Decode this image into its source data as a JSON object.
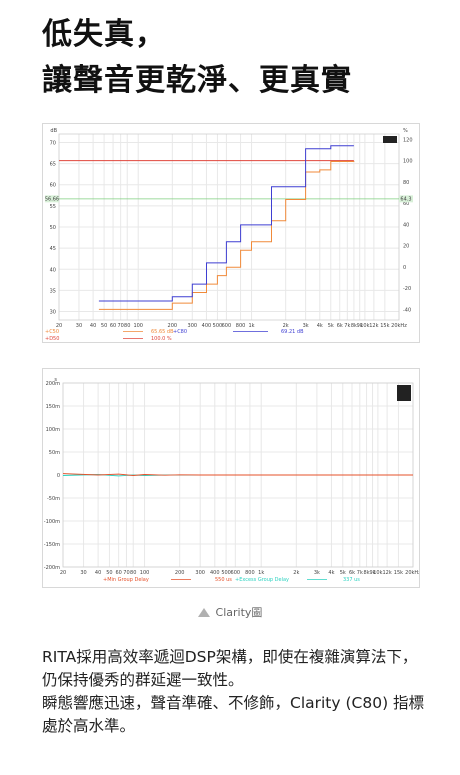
{
  "headline": {
    "line1": "低失真，",
    "line2": "讓聲音更乾淨、更真實"
  },
  "colors": {
    "blue": "#3f3fd2",
    "red": "#e5502a",
    "orange": "#f08a3a",
    "cyan": "#2bd2c0",
    "redline": "#e0463c"
  },
  "figure1": {
    "y_unit_left": "dB",
    "y_unit_right": "%",
    "y_ticks_left": [
      "70",
      "65",
      "60",
      "55",
      "50",
      "45",
      "40",
      "35",
      "30"
    ],
    "y_ticks_right": [
      "120",
      "100",
      "80",
      "60",
      "40",
      "20",
      "0",
      "-20",
      "-40"
    ],
    "x_ticks": [
      "20",
      "30",
      "40",
      "50",
      "60",
      "70",
      "80",
      "100",
      "200",
      "300",
      "400",
      "500",
      "600",
      "800",
      "1k",
      "2k",
      "3k",
      "4k",
      "5k",
      "6k",
      "7k",
      "8k",
      "9k",
      "10k",
      "12k",
      "15k",
      "20kHz"
    ],
    "cursor_left": "56.66",
    "cursor_right": "64.3",
    "legend": [
      {
        "label": "+C50",
        "value": "65.65 dB",
        "label2": "+C80",
        "value2": "69.21 dB"
      },
      {
        "label": "+D50",
        "value": "100.0 %"
      }
    ]
  },
  "figure2": {
    "y_unit": "s",
    "y_ticks": [
      "200m",
      "150m",
      "100m",
      "50m",
      "0",
      "-50m",
      "-100m",
      "-150m",
      "-200m"
    ],
    "x_ticks": [
      "20",
      "30",
      "40",
      "50",
      "60",
      "70",
      "80",
      "100",
      "200",
      "300",
      "400",
      "500",
      "600",
      "800",
      "1k",
      "2k",
      "3k",
      "4k",
      "5k",
      "6k",
      "7k",
      "8k",
      "9k",
      "10k",
      "12k",
      "15k",
      "20kHz"
    ],
    "legend": [
      {
        "label": "+Min Group Delay",
        "value": "550 us"
      },
      {
        "label": "+Excess Group Delay",
        "value": "337 us"
      }
    ]
  },
  "chart_data": [
    {
      "type": "line",
      "xlabel": "",
      "ylabel": "dB",
      "x_scale": "log",
      "xlim": [
        20,
        20000
      ],
      "ylim": [
        28,
        72
      ],
      "y2label": "%",
      "y2lim": [
        -50,
        125
      ],
      "grid": true,
      "series": [
        {
          "name": "C50",
          "x": [
            45,
            100,
            200,
            300,
            400,
            500,
            600,
            800,
            1000,
            1500,
            2000,
            3000,
            4000,
            5000,
            6000,
            8000
          ],
          "y": [
            30.5,
            30.5,
            32.0,
            34.5,
            36.5,
            38.5,
            40.5,
            44.5,
            46.5,
            51.5,
            56.5,
            63.0,
            63.5,
            65.5,
            65.5,
            65.6
          ]
        },
        {
          "name": "C80",
          "x": [
            45,
            100,
            200,
            300,
            400,
            500,
            600,
            800,
            1000,
            1500,
            2000,
            3000,
            4000,
            5000,
            6000,
            8000
          ],
          "y": [
            32.5,
            32.5,
            33.5,
            36.5,
            41.5,
            41.5,
            46.5,
            50.5,
            50.5,
            59.5,
            59.5,
            68.5,
            68.5,
            69.2,
            69.2,
            69.2
          ]
        },
        {
          "name": "D50",
          "x": [
            20,
            8000
          ],
          "y": [
            100,
            100
          ],
          "axis": "right"
        }
      ]
    },
    {
      "type": "line",
      "xlabel": "",
      "ylabel": "s",
      "x_scale": "log",
      "xlim": [
        20,
        20000
      ],
      "ylim": [
        -200,
        200
      ],
      "grid": true,
      "series": [
        {
          "name": "Min Group Delay",
          "x": [
            20,
            40,
            60,
            80,
            100,
            150,
            200,
            300,
            500,
            1000,
            20000
          ],
          "y": [
            3,
            0,
            2,
            -1,
            1,
            -0.5,
            0.5,
            0,
            0,
            0,
            0
          ]
        },
        {
          "name": "Excess Group Delay",
          "x": [
            20,
            40,
            60,
            80,
            100,
            150,
            200,
            300,
            500,
            1000,
            20000
          ],
          "y": [
            -1,
            1,
            -2,
            0,
            -1,
            0,
            0,
            0,
            0,
            0,
            0
          ]
        }
      ]
    }
  ],
  "caption": {
    "text": "Clarity圖"
  },
  "paragraphs": {
    "p1": "RITA採用高效率遞迴DSP架構，即使在複雜演算法下，仍保持優秀的群延遲一致性。",
    "p2": "瞬態響應迅速，聲音準確、不修飾，Clarity (C80) 指標處於高水準。"
  }
}
